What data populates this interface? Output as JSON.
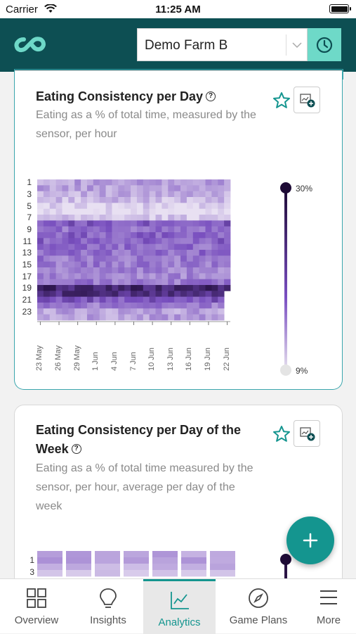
{
  "status_bar": {
    "carrier": "Carrier",
    "time": "11:25 AM"
  },
  "header": {
    "farm_selector": {
      "value": "Demo Farm B"
    }
  },
  "cards": [
    {
      "title": "Eating Consistency per Day",
      "subtitle": "Eating as a % of total time, measured by the sensor, per hour"
    },
    {
      "title": "Eating Consistency per Day of the Week",
      "subtitle": "Eating as a % of total time measured by the sensor, per hour, average per day of the week"
    }
  ],
  "chart_data": [
    {
      "type": "heatmap",
      "title": "Eating Consistency per Day",
      "y_tick_labels": [
        "1",
        "3",
        "5",
        "7",
        "9",
        "11",
        "13",
        "15",
        "17",
        "19",
        "21",
        "23"
      ],
      "x_tick_labels": [
        "23 May",
        "26 May",
        "29 May",
        "1 Jun",
        "4 Jun",
        "7 Jun",
        "10 Jun",
        "13 Jun",
        "16 Jun",
        "19 Jun",
        "22 Jun"
      ],
      "color_scale": {
        "min_label": "9%",
        "max_label": "30%",
        "min": 9,
        "max": 30,
        "low_color": "#e8e0f2",
        "high_color": "#1e0b36"
      },
      "hour_profile_percent": [
        14,
        14,
        13,
        12,
        10,
        9,
        11,
        20,
        18,
        19,
        19,
        18,
        18,
        17,
        17,
        16,
        16,
        17,
        26,
        25,
        20,
        17,
        14,
        14
      ],
      "legend_placement": "right"
    },
    {
      "type": "heatmap",
      "title": "Eating Consistency per Day of the Week",
      "y_tick_labels": [
        "1",
        "3"
      ],
      "columns": 7
    }
  ],
  "tabs": [
    {
      "label": "Overview",
      "icon": "grid-icon"
    },
    {
      "label": "Insights",
      "icon": "lightbulb-icon"
    },
    {
      "label": "Analytics",
      "icon": "chart-line-icon",
      "active": true
    },
    {
      "label": "Game Plans",
      "icon": "compass-icon"
    },
    {
      "label": "More",
      "icon": "menu-icon"
    }
  ],
  "colors": {
    "header": "#0d4f53",
    "accent": "#14958f",
    "history_button": "#6ed9c8"
  }
}
